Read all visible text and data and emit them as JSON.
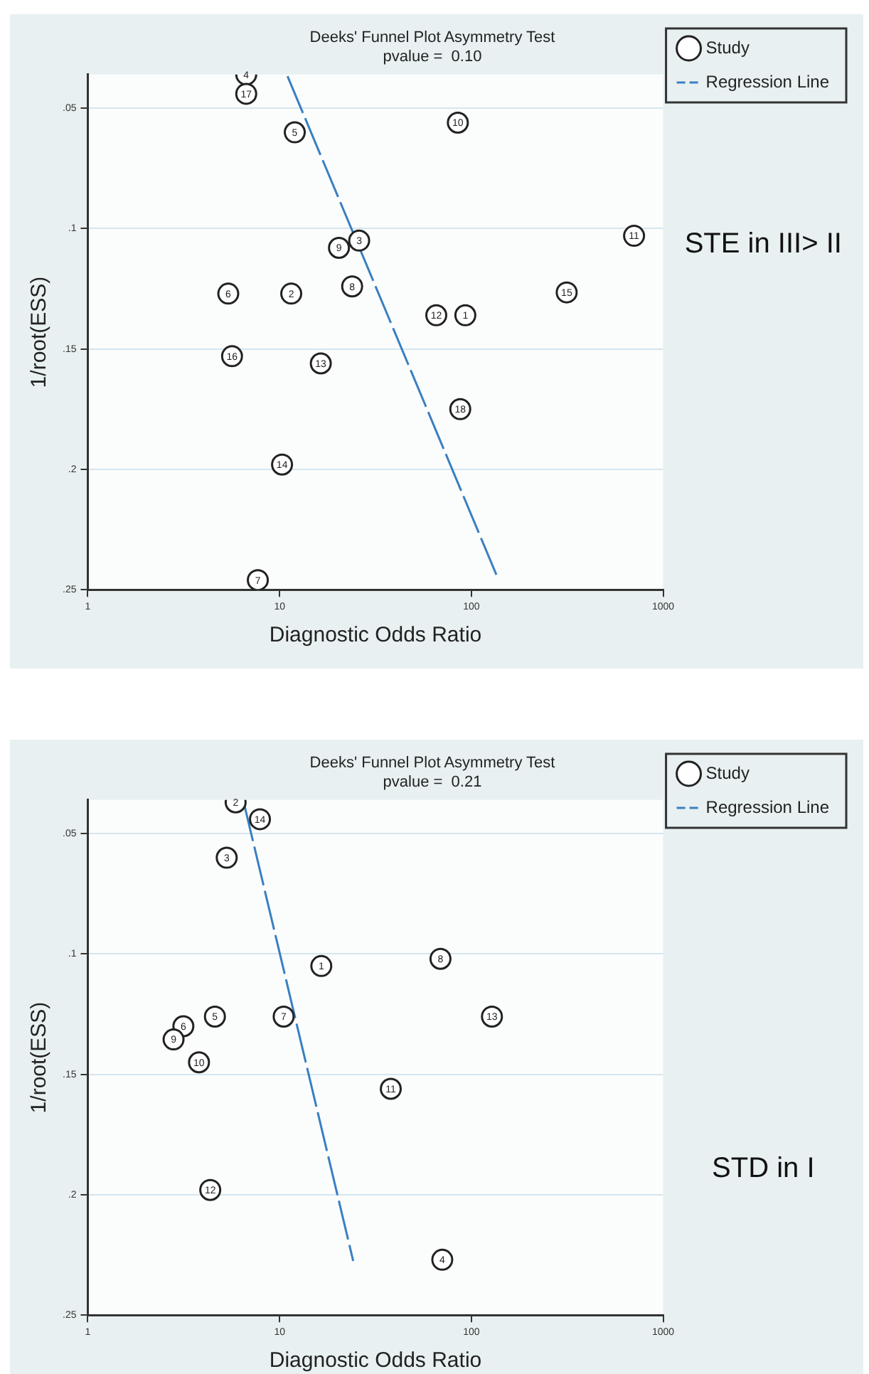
{
  "chart_data": [
    {
      "type": "scatter",
      "title": "Deeks' Funnel Plot Asymmetry Test",
      "subtitle": "pvalue =  0.10",
      "xlabel": "Diagnostic Odds Ratio",
      "ylabel": "1/root(ESS)",
      "log": "x",
      "grid": "y",
      "legend": "top right",
      "xlim": [
        1,
        1000
      ],
      "xticks": [
        1,
        10,
        100,
        1000
      ],
      "ylim": [
        0.25,
        0.036
      ],
      "yticks": [
        {
          "value": 0.05,
          "label": ".05"
        },
        {
          "value": 0.1,
          "label": ".1"
        },
        {
          "value": 0.15,
          "label": ".15"
        },
        {
          "value": 0.2,
          "label": ".2"
        },
        {
          "value": 0.25,
          "label": ".25"
        }
      ],
      "annotations": [
        "STE in III> II",
        {
          "text": "4",
          "x": 6.7,
          "y": 0.036
        },
        {
          "text": "17",
          "x": 6.7,
          "y": 0.044
        },
        {
          "text": "5",
          "x": 12,
          "y": 0.06
        },
        {
          "text": "10",
          "x": 85,
          "y": 0.056
        },
        {
          "text": "11",
          "x": 705,
          "y": 0.103
        },
        {
          "text": "3",
          "x": 26,
          "y": 0.105
        },
        {
          "text": "9",
          "x": 20.4,
          "y": 0.108
        },
        {
          "text": "8",
          "x": 23.9,
          "y": 0.124
        },
        {
          "text": "6",
          "x": 5.4,
          "y": 0.127
        },
        {
          "text": "2",
          "x": 11.5,
          "y": 0.127
        },
        {
          "text": "15",
          "x": 314,
          "y": 0.1265
        },
        {
          "text": "12",
          "x": 65.6,
          "y": 0.136
        },
        {
          "text": "1",
          "x": 93,
          "y": 0.136
        },
        {
          "text": "16",
          "x": 5.65,
          "y": 0.153
        },
        {
          "text": "13",
          "x": 16.4,
          "y": 0.156
        },
        {
          "text": "18",
          "x": 87.5,
          "y": 0.175
        },
        {
          "text": "14",
          "x": 10.3,
          "y": 0.198
        },
        {
          "text": "7",
          "x": 7.7,
          "y": 0.246
        }
      ],
      "series": [
        {
          "name": "Study",
          "type": "scatter",
          "marker": "circle",
          "color": "#222222",
          "x": [
            6.7,
            6.7,
            12,
            85,
            705,
            26,
            20.4,
            23.9,
            5.4,
            11.5,
            314,
            65.6,
            93,
            5.65,
            16.4,
            87.5,
            10.3,
            7.7
          ],
          "values": [
            0.036,
            0.044,
            0.06,
            0.056,
            0.103,
            0.105,
            0.108,
            0.124,
            0.127,
            0.127,
            0.1265,
            0.136,
            0.136,
            0.153,
            0.156,
            0.175,
            0.198,
            0.246
          ]
        },
        {
          "name": "Regression Line",
          "type": "line",
          "marker": "none",
          "line_style": "dashed",
          "color": "#3a7fc1",
          "x": [
            11,
            137
          ],
          "values": [
            0.0367,
            0.245
          ]
        }
      ]
    },
    {
      "type": "scatter",
      "title": "Deeks' Funnel Plot Asymmetry Test",
      "subtitle": "pvalue =  0.21",
      "xlabel": "Diagnostic Odds Ratio",
      "ylabel": "1/root(ESS)",
      "log": "x",
      "grid": "y",
      "legend": "top right",
      "xlim": [
        1,
        1000
      ],
      "xticks": [
        1,
        10,
        100,
        1000
      ],
      "ylim": [
        0.25,
        0.036
      ],
      "yticks": [
        {
          "value": 0.05,
          "label": ".05"
        },
        {
          "value": 0.1,
          "label": ".1"
        },
        {
          "value": 0.15,
          "label": ".15"
        },
        {
          "value": 0.2,
          "label": ".2"
        },
        {
          "value": 0.25,
          "label": ".25"
        }
      ],
      "annotations": [
        "STD in I",
        {
          "text": "2",
          "x": 5.9,
          "y": 0.037
        },
        {
          "text": "14",
          "x": 7.9,
          "y": 0.044
        },
        {
          "text": "3",
          "x": 5.3,
          "y": 0.06
        },
        {
          "text": "1",
          "x": 16.5,
          "y": 0.105
        },
        {
          "text": "8",
          "x": 69,
          "y": 0.102
        },
        {
          "text": "5",
          "x": 4.6,
          "y": 0.126
        },
        {
          "text": "7",
          "x": 10.5,
          "y": 0.126
        },
        {
          "text": "13",
          "x": 128,
          "y": 0.126
        },
        {
          "text": "6",
          "x": 3.15,
          "y": 0.13
        },
        {
          "text": "9",
          "x": 2.8,
          "y": 0.1355
        },
        {
          "text": "10",
          "x": 3.8,
          "y": 0.145
        },
        {
          "text": "11",
          "x": 38,
          "y": 0.156
        },
        {
          "text": "12",
          "x": 4.35,
          "y": 0.198
        },
        {
          "text": "4",
          "x": 70.5,
          "y": 0.227
        }
      ],
      "series": [
        {
          "name": "Study",
          "type": "scatter",
          "marker": "circle",
          "color": "#222222",
          "x": [
            5.9,
            7.9,
            5.3,
            16.5,
            69,
            4.6,
            10.5,
            128,
            3.15,
            2.8,
            3.8,
            38,
            4.35,
            70.5
          ],
          "values": [
            0.037,
            0.044,
            0.06,
            0.105,
            0.102,
            0.126,
            0.126,
            0.126,
            0.13,
            0.1355,
            0.145,
            0.156,
            0.198,
            0.227
          ]
        },
        {
          "name": "Regression Line",
          "type": "line",
          "marker": "none",
          "line_style": "dashed",
          "color": "#3a7fc1",
          "x": [
            6.5,
            24.2
          ],
          "values": [
            0.037,
            0.2275
          ]
        }
      ]
    }
  ]
}
